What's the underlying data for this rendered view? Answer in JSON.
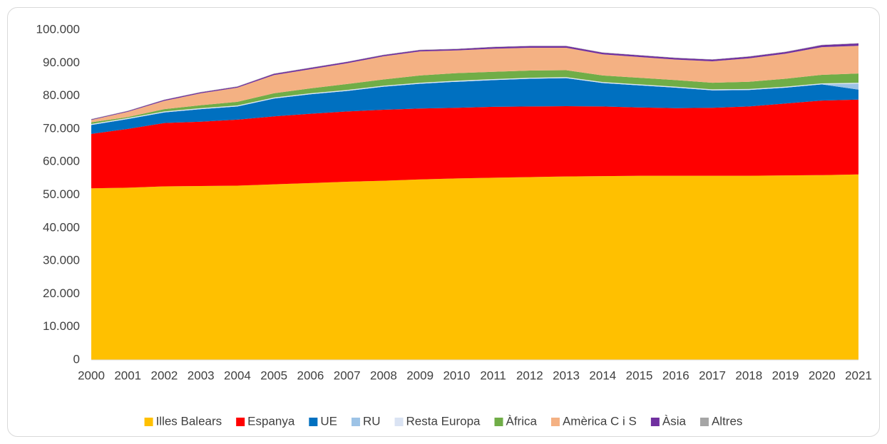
{
  "chart_data": {
    "type": "stacked_area",
    "categories": [
      "2000",
      "2001",
      "2002",
      "2003",
      "2004",
      "2005",
      "2006",
      "2007",
      "2008",
      "2009",
      "2010",
      "2011",
      "2012",
      "2013",
      "2014",
      "2015",
      "2016",
      "2017",
      "2018",
      "2019",
      "2020",
      "2021"
    ],
    "ylim": [
      0,
      100000
    ],
    "yticks": [
      0,
      {
        "value": 10000,
        "label": "10.000"
      },
      {
        "value": 20000,
        "label": "20.000"
      },
      {
        "value": 30000,
        "label": "30.000"
      },
      {
        "value": 40000,
        "label": "40.000"
      },
      {
        "value": 50000,
        "label": "50.000"
      },
      {
        "value": 60000,
        "label": "60.000"
      },
      {
        "value": 70000,
        "label": "70.000"
      },
      {
        "value": 80000,
        "label": "80.000"
      },
      {
        "value": 90000,
        "label": "90.000"
      },
      {
        "value": 100000,
        "label": "100.000"
      }
    ],
    "grid": false,
    "legend": "bottom",
    "series": [
      {
        "name": "Illes Balears",
        "color": "#ffc000",
        "values": [
          52000,
          52200,
          52600,
          52700,
          52800,
          53200,
          53600,
          54000,
          54300,
          54700,
          55000,
          55200,
          55400,
          55600,
          55700,
          55800,
          55800,
          55800,
          55800,
          55900,
          56000,
          56200
        ]
      },
      {
        "name": "Espanya",
        "color": "#ff0000",
        "values": [
          16500,
          17800,
          19200,
          19500,
          20000,
          20600,
          21000,
          21300,
          21500,
          21500,
          21400,
          21500,
          21400,
          21300,
          21100,
          20700,
          20500,
          20600,
          21000,
          21800,
          22600,
          22700
        ]
      },
      {
        "name": "UE",
        "color": "#0070c0",
        "values": [
          2700,
          3000,
          3200,
          3800,
          4000,
          5400,
          5900,
          6200,
          7000,
          7500,
          7900,
          8100,
          8400,
          8500,
          7100,
          6700,
          6200,
          5300,
          5000,
          4800,
          4900,
          3000
        ]
      },
      {
        "name": "RU",
        "color": "#9dc3e6",
        "values": [
          0,
          0,
          0,
          0,
          0,
          0,
          0,
          0,
          0,
          0,
          0,
          0,
          0,
          0,
          0,
          0,
          0,
          0,
          0,
          0,
          0,
          1800
        ]
      },
      {
        "name": "Resta Europa",
        "color": "#dae3f3",
        "values": [
          300,
          300,
          300,
          300,
          300,
          300,
          300,
          300,
          300,
          300,
          300,
          300,
          300,
          300,
          300,
          300,
          300,
          300,
          300,
          300,
          300,
          300
        ]
      },
      {
        "name": "Àfrica",
        "color": "#70ad47",
        "values": [
          500,
          300,
          700,
          900,
          1100,
          1300,
          1500,
          1800,
          1900,
          2200,
          2300,
          2200,
          2200,
          2100,
          2000,
          2000,
          2000,
          2000,
          2200,
          2400,
          2600,
          2800
        ]
      },
      {
        "name": "Amèrica C i S",
        "color": "#f4b183",
        "values": [
          700,
          1600,
          2500,
          3600,
          4300,
          5500,
          5800,
          6300,
          7000,
          7300,
          6900,
          7000,
          6900,
          6800,
          6400,
          6300,
          6200,
          6500,
          7100,
          7600,
          8400,
          8400
        ]
      },
      {
        "name": "Àsia",
        "color": "#7030a0",
        "values": [
          200,
          200,
          300,
          300,
          300,
          400,
          400,
          400,
          400,
          400,
          400,
          500,
          500,
          500,
          500,
          500,
          500,
          500,
          500,
          500,
          600,
          700
        ]
      },
      {
        "name": "Altres",
        "color": "#a5a5a5",
        "values": [
          100,
          100,
          100,
          100,
          100,
          100,
          100,
          100,
          100,
          100,
          100,
          100,
          100,
          100,
          100,
          100,
          100,
          100,
          100,
          100,
          100,
          100
        ]
      }
    ]
  }
}
